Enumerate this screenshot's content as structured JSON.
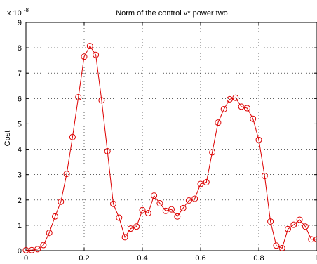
{
  "chart_data": {
    "type": "line",
    "title": "Norm of the control v* power two",
    "xlabel": "",
    "ylabel": "Cost",
    "y_exponent_label": "x 10",
    "y_exponent_power": "-8",
    "xlim": [
      0,
      1
    ],
    "ylim": [
      0,
      9
    ],
    "x_ticks": [
      0,
      0.2,
      0.4,
      0.6,
      0.8,
      1
    ],
    "x_tick_labels": [
      "0",
      "0.2",
      "0.4",
      "0.6",
      "0.8",
      "1"
    ],
    "y_ticks": [
      0,
      1,
      2,
      3,
      4,
      5,
      6,
      7,
      8,
      9
    ],
    "y_tick_labels": [
      "0",
      "1",
      "2",
      "3",
      "4",
      "5",
      "6",
      "7",
      "8",
      "9"
    ],
    "grid": true,
    "series": [
      {
        "color": "#dd0000",
        "marker": "circle",
        "x": [
          0,
          0.02,
          0.04,
          0.06,
          0.08,
          0.1,
          0.12,
          0.14,
          0.16,
          0.18,
          0.2,
          0.22,
          0.24,
          0.26,
          0.28,
          0.3,
          0.32,
          0.34,
          0.36,
          0.38,
          0.4,
          0.42,
          0.44,
          0.46,
          0.48,
          0.5,
          0.52,
          0.54,
          0.56,
          0.58,
          0.6,
          0.62,
          0.64,
          0.66,
          0.68,
          0.7,
          0.72,
          0.74,
          0.76,
          0.78,
          0.8,
          0.82,
          0.84,
          0.86,
          0.88,
          0.9,
          0.92,
          0.94,
          0.96,
          0.98,
          1.0
        ],
        "y": [
          0.02,
          0.02,
          0.06,
          0.22,
          0.7,
          1.35,
          1.93,
          3.03,
          4.48,
          6.05,
          7.65,
          8.07,
          7.72,
          5.93,
          3.92,
          1.85,
          1.3,
          0.53,
          0.87,
          0.95,
          1.6,
          1.48,
          2.17,
          1.87,
          1.57,
          1.63,
          1.35,
          1.68,
          1.98,
          2.05,
          2.63,
          2.7,
          3.88,
          5.05,
          5.58,
          5.97,
          6.03,
          5.68,
          5.62,
          5.2,
          4.37,
          2.95,
          1.15,
          0.2,
          0.1,
          0.85,
          1.02,
          1.22,
          0.95,
          0.45,
          0.45
        ]
      }
    ]
  }
}
